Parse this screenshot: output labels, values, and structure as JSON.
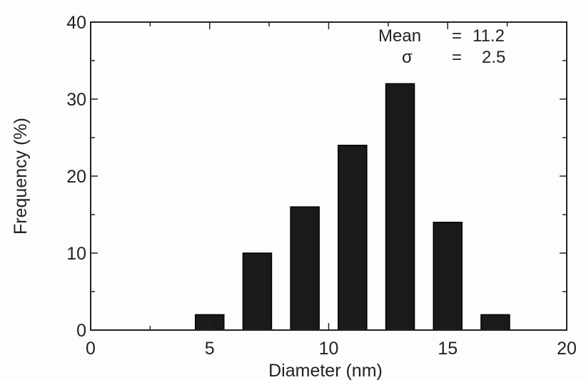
{
  "chart_data": {
    "type": "bar",
    "title": "",
    "xlabel": "Diameter (nm)",
    "ylabel": "Frequency (%)",
    "xlim": [
      0,
      20
    ],
    "ylim": [
      0,
      40
    ],
    "xticks": [
      0,
      5,
      10,
      15,
      20
    ],
    "yticks": [
      0,
      10,
      20,
      30,
      40
    ],
    "bar_width": 1.2,
    "x": [
      5,
      7,
      9,
      11,
      13,
      15,
      17
    ],
    "values": [
      2,
      10,
      16,
      24,
      32,
      14,
      2
    ],
    "bar_color": "#1a1a1a",
    "grid": false,
    "annotations": {
      "mean_label": "Mean",
      "mean_equals": "=",
      "mean_value": "11.2",
      "sigma_label": "σ",
      "sigma_equals": "=",
      "sigma_value": "2.5"
    }
  }
}
